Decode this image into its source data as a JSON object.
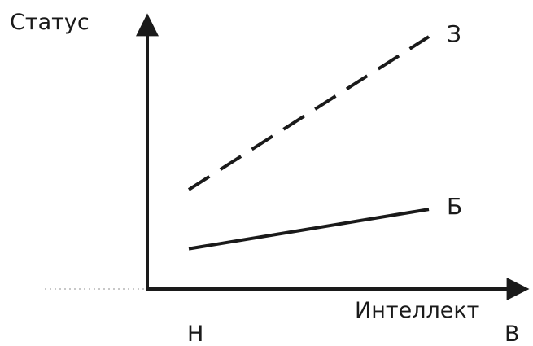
{
  "chart_data": {
    "type": "line",
    "title": "",
    "xlabel": "Интеллект",
    "ylabel": "Статус",
    "x_categories": [
      "Н",
      "В"
    ],
    "x_domain": [
      0,
      1
    ],
    "y_domain": [
      0,
      1
    ],
    "grid": false,
    "legend": "none",
    "series": [
      {
        "name": "З",
        "style": "dashed",
        "color": "#1a1a1a",
        "points": [
          [
            0,
            0.37
          ],
          [
            1,
            0.99
          ]
        ]
      },
      {
        "name": "Б",
        "style": "solid",
        "color": "#1a1a1a",
        "points": [
          [
            0,
            0.13
          ],
          [
            1,
            0.29
          ]
        ]
      }
    ]
  }
}
